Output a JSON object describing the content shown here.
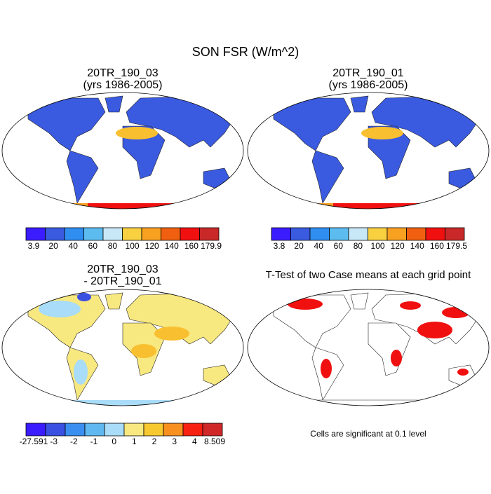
{
  "title": "SON FSR (W/m^2)",
  "panels": [
    {
      "title": [
        "20TR_190_03",
        "(yrs 1986-2005)"
      ],
      "colorbar": {
        "labels": [
          3.9,
          20,
          40,
          60,
          80,
          100,
          120,
          140,
          160,
          179.9
        ],
        "colors": [
          "#3a1cff",
          "#3a5ae0",
          "#2f8ef0",
          "#5cbcf0",
          "#c8e8f8",
          "#f8d040",
          "#f8a020",
          "#f06010",
          "#f01010",
          "#c82828"
        ]
      }
    },
    {
      "title": [
        "20TR_190_01",
        "(yrs 1986-2005)"
      ],
      "colorbar": {
        "labels": [
          3.8,
          20,
          40,
          60,
          80,
          100,
          120,
          140,
          160,
          179.5
        ],
        "colors": [
          "#3a1cff",
          "#3a5ae0",
          "#2f8ef0",
          "#5cbcf0",
          "#c8e8f8",
          "#f8d040",
          "#f8a020",
          "#f06010",
          "#f01010",
          "#c82828"
        ]
      }
    },
    {
      "title": [
        "20TR_190_03",
        "- 20TR_190_01"
      ],
      "colorbar": {
        "labels": [
          -27.591,
          -3,
          -2,
          -1,
          0,
          1,
          2,
          3,
          4,
          8.509
        ],
        "colors": [
          "#3a1cff",
          "#3a50e0",
          "#3a8ef0",
          "#60b8f0",
          "#a8dcf8",
          "#f8e880",
          "#f8c830",
          "#f89020",
          "#f82010",
          "#d02828"
        ]
      }
    },
    {
      "title": [
        "T-Test of two Case means at each grid point"
      ]
    }
  ],
  "note": "Cells are significant at 0.1 level"
}
